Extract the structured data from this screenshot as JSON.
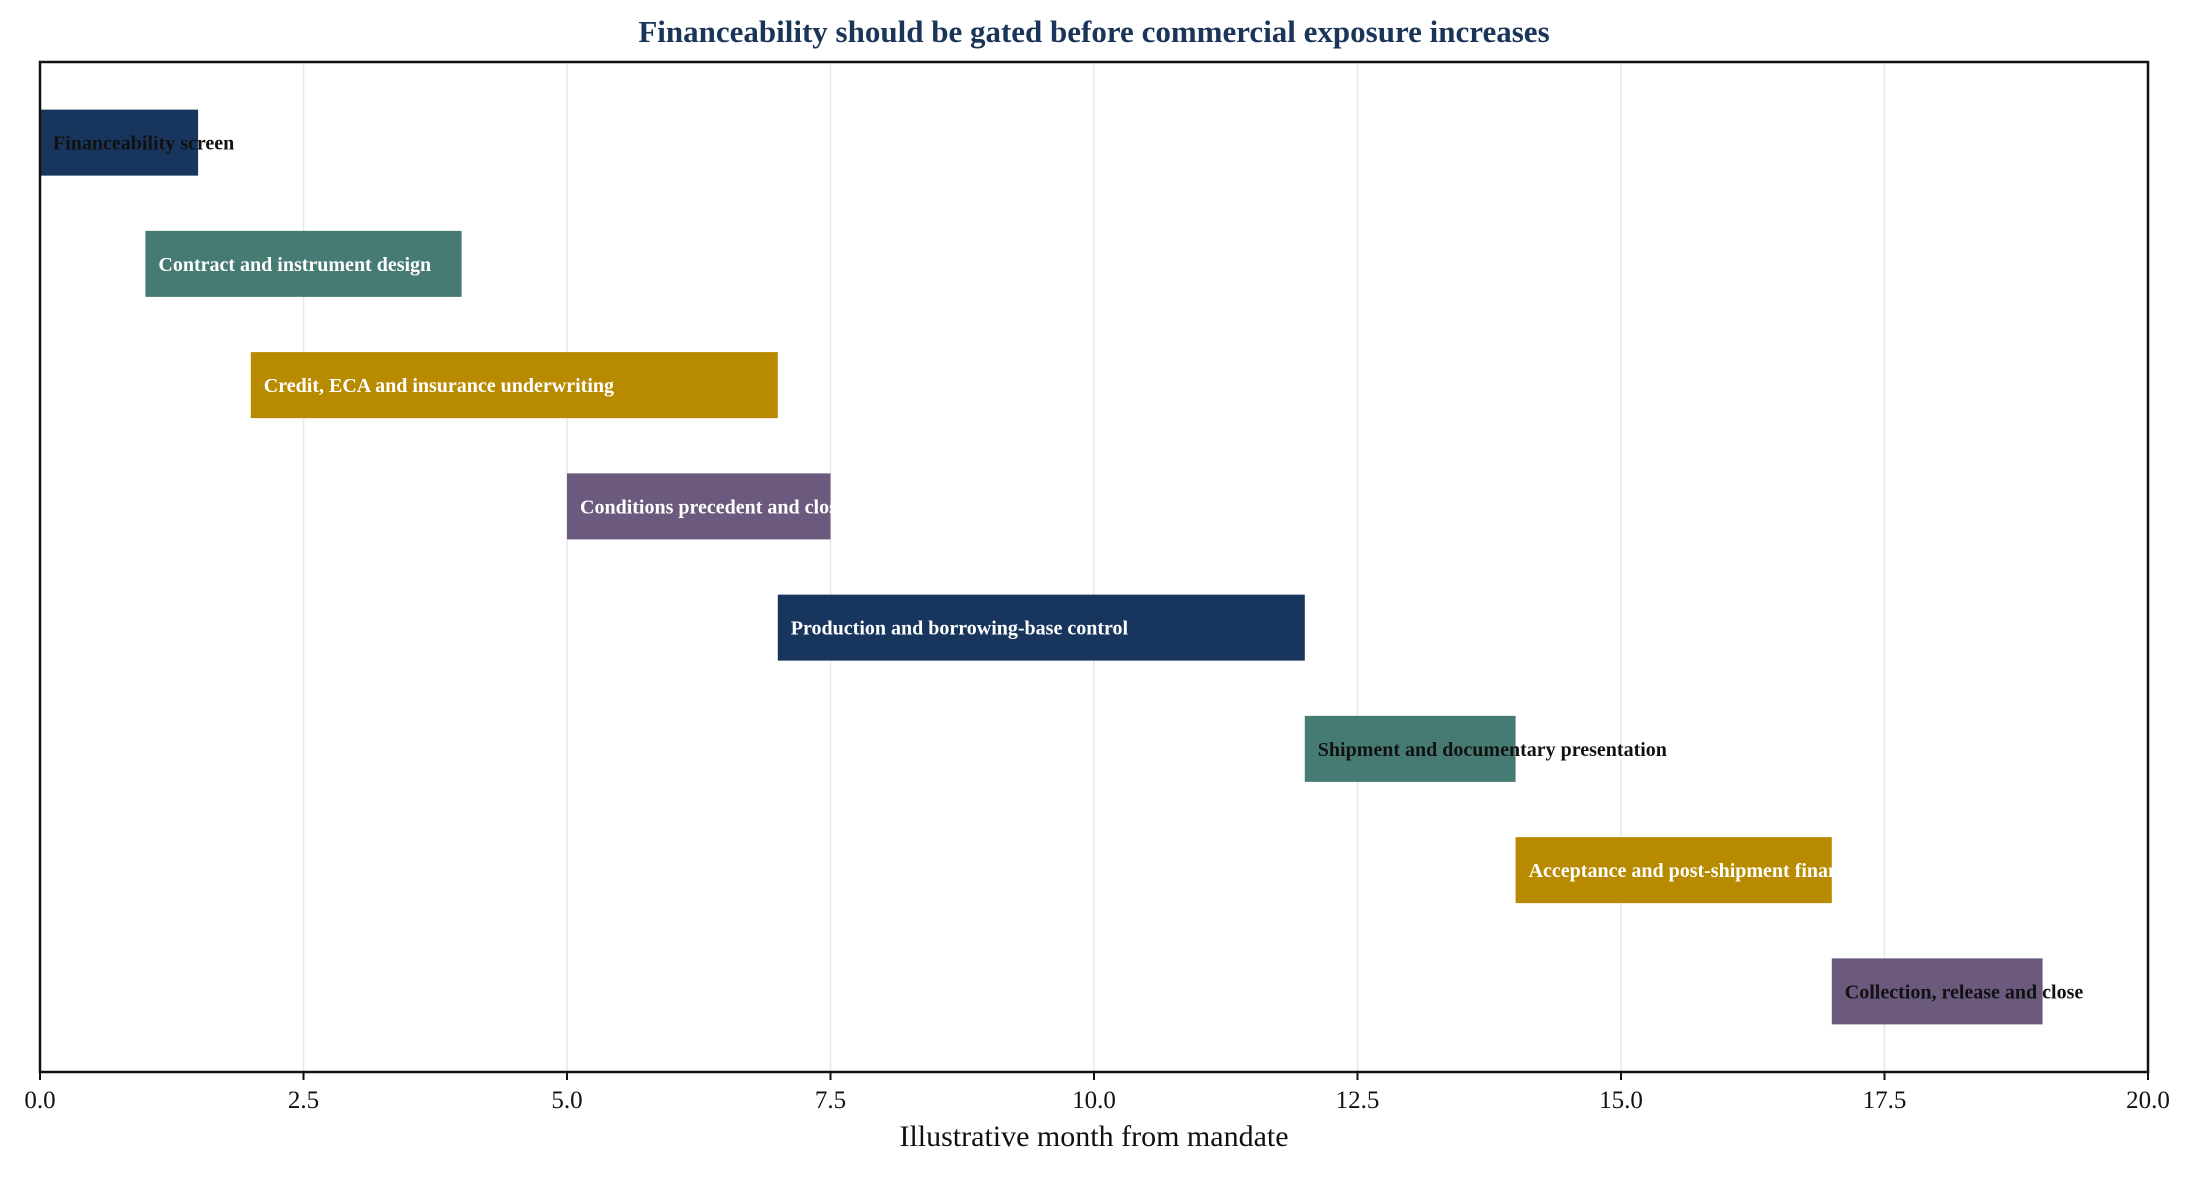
{
  "colors": {
    "title": "#1b3559",
    "navy": "#18365d",
    "teal": "#467b73",
    "gold": "#b88a00",
    "purple": "#6b5a7e",
    "grid": "#e8e8e8",
    "axis": "#111111"
  },
  "chart_data": {
    "type": "bar",
    "orientation": "horizontal-gantt",
    "title": "Financeability should be gated before commercial exposure increases",
    "xlabel": "Illustrative month from mandate",
    "ylabel": "",
    "xlim": [
      0,
      20
    ],
    "xticks": [
      0,
      2.5,
      5,
      7.5,
      10,
      12.5,
      15,
      17.5,
      20
    ],
    "xtick_labels": [
      "0.0",
      "2.5",
      "5.0",
      "7.5",
      "10.0",
      "12.5",
      "15.0",
      "17.5",
      "20.0"
    ],
    "grid": "vertical",
    "tasks": [
      {
        "label": "Financeability screen",
        "start": 0,
        "end": 1.5,
        "color": "navy",
        "label_color": "#111111"
      },
      {
        "label": "Contract and instrument design",
        "start": 1,
        "end": 4,
        "color": "teal",
        "label_color": "#ffffff"
      },
      {
        "label": "Credit, ECA and insurance underwriting",
        "start": 2,
        "end": 7,
        "color": "gold",
        "label_color": "#ffffff"
      },
      {
        "label": "Conditions precedent and closing",
        "start": 5,
        "end": 7.5,
        "color": "purple",
        "label_color": "#ffffff"
      },
      {
        "label": "Production and borrowing-base control",
        "start": 7,
        "end": 12,
        "color": "navy",
        "label_color": "#ffffff"
      },
      {
        "label": "Shipment and documentary presentation",
        "start": 12,
        "end": 14,
        "color": "teal",
        "label_color": "#111111"
      },
      {
        "label": "Acceptance and post-shipment finance",
        "start": 14,
        "end": 17,
        "color": "gold",
        "label_color": "#ffffff"
      },
      {
        "label": "Collection, release and close",
        "start": 17,
        "end": 19,
        "color": "purple",
        "label_color": "#111111"
      }
    ]
  }
}
